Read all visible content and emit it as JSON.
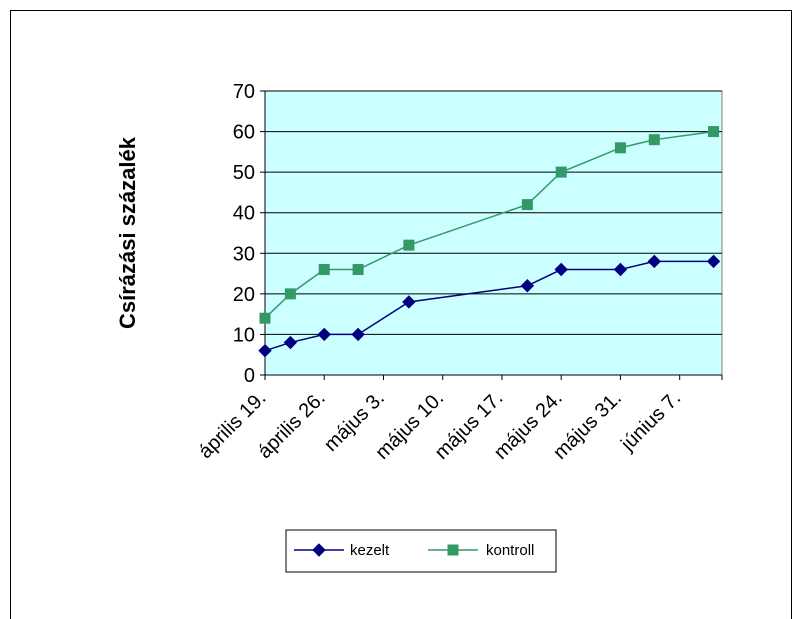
{
  "chart_data": {
    "type": "line",
    "title": "",
    "xlabel": "",
    "ylabel": "Csírázási százalék",
    "ylim": [
      0,
      70
    ],
    "yticks": [
      0,
      10,
      20,
      30,
      40,
      50,
      60,
      70
    ],
    "x_labels": [
      "április 19.",
      "április 26.",
      "május 3.",
      "május 10.",
      "május 17.",
      "május 24.",
      "május 31.",
      "június 7."
    ],
    "x_start_day": 0,
    "x_end_day": 54,
    "grid": "horizontal",
    "legend_position": "bottom",
    "plot_background": "#ccffff",
    "series": [
      {
        "name": "kezelt",
        "color": "#000080",
        "marker": "diamond",
        "x": [
          "április 19.",
          "április 22.",
          "április 26.",
          "április 29.",
          "május 3.",
          "május 15.",
          "május 19.",
          "május 24.",
          "május 28.",
          "június 1."
        ],
        "x_day": [
          0,
          3,
          7,
          11,
          17,
          31,
          35,
          42,
          46,
          53
        ],
        "values": [
          6,
          8,
          10,
          10,
          18,
          22,
          26,
          26,
          28,
          28
        ]
      },
      {
        "name": "kontroll",
        "color": "#339966",
        "marker": "square",
        "x": [
          "április 19.",
          "április 22.",
          "április 26.",
          "április 29.",
          "május 3.",
          "május 15.",
          "május 19.",
          "május 24.",
          "május 28.",
          "június 1."
        ],
        "x_day": [
          0,
          3,
          7,
          11,
          17,
          31,
          35,
          42,
          46,
          53
        ],
        "values": [
          14,
          20,
          26,
          26,
          32,
          42,
          50,
          56,
          58,
          60
        ]
      }
    ]
  }
}
